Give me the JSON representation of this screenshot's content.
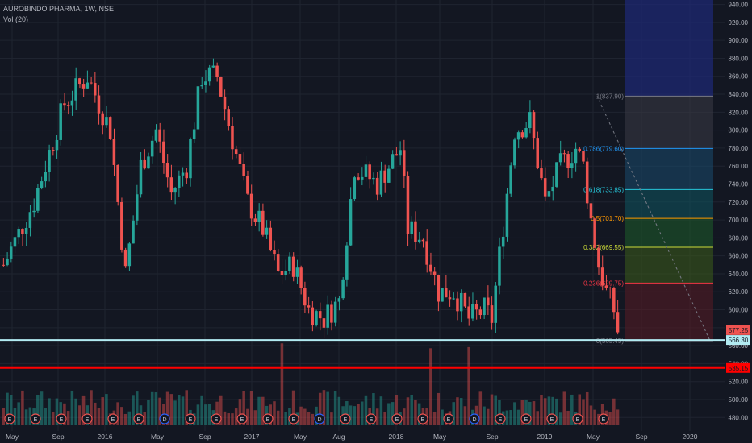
{
  "header": {
    "title": "AUROBINDO PHARMA, 1W, NSE",
    "indicator": "Vol (20)"
  },
  "colors": {
    "background": "#131722",
    "grid": "#1f2430",
    "up": "#26a69a",
    "down": "#ef5350",
    "axis_text": "#b2b5be"
  },
  "chart_data": {
    "type": "candlestick",
    "interval": "1W",
    "ylim": [
      465,
      945
    ],
    "y_ticks": [
      480,
      500,
      520,
      540,
      560,
      580,
      600,
      620,
      640,
      660,
      680,
      700,
      720,
      740,
      760,
      780,
      800,
      820,
      840,
      860,
      880,
      900,
      920,
      940
    ],
    "x_ticks": [
      "May",
      "Sep",
      "2016",
      "May",
      "Sep",
      "2017",
      "May",
      "Aug",
      "2018",
      "May",
      "Sep",
      "2019",
      "May",
      "Sep",
      "2020"
    ],
    "ohlc_anchors": [
      [
        0,
        650
      ],
      [
        8,
        720
      ],
      [
        16,
        830
      ],
      [
        22,
        860
      ],
      [
        28,
        800
      ],
      [
        32,
        640
      ],
      [
        36,
        760
      ],
      [
        40,
        800
      ],
      [
        44,
        730
      ],
      [
        48,
        760
      ],
      [
        52,
        860
      ],
      [
        56,
        860
      ],
      [
        60,
        790
      ],
      [
        64,
        720
      ],
      [
        68,
        690
      ],
      [
        72,
        640
      ],
      [
        76,
        650
      ],
      [
        80,
        600
      ],
      [
        84,
        590
      ],
      [
        88,
        610
      ],
      [
        92,
        760
      ],
      [
        98,
        740
      ],
      [
        104,
        780
      ],
      [
        106,
        690
      ],
      [
        110,
        680
      ],
      [
        114,
        620
      ],
      [
        118,
        620
      ],
      [
        122,
        590
      ],
      [
        126,
        600
      ],
      [
        128,
        590
      ],
      [
        130,
        660
      ],
      [
        134,
        800
      ],
      [
        138,
        810
      ],
      [
        142,
        720
      ],
      [
        146,
        760
      ],
      [
        150,
        780
      ],
      [
        152,
        760
      ],
      [
        154,
        700
      ],
      [
        156,
        650
      ],
      [
        158,
        620
      ],
      [
        160,
        600
      ],
      [
        161,
        577
      ]
    ],
    "fib_levels": [
      {
        "ratio": "1",
        "value": 837.9,
        "label": "1(837.90)",
        "color": "#787b86"
      },
      {
        "ratio": "0.786",
        "value": 779.6,
        "label": "0.786(779.60)",
        "color": "#2196f3"
      },
      {
        "ratio": "0.618",
        "value": 733.85,
        "label": "0.618(733.85)",
        "color": "#26c6da"
      },
      {
        "ratio": "0.5",
        "value": 701.7,
        "label": "0.5(701.70)",
        "color": "#ff9800"
      },
      {
        "ratio": "0.382",
        "value": 669.55,
        "label": "0.382(669.55)",
        "color": "#cddc39"
      },
      {
        "ratio": "0.236",
        "value": 629.75,
        "label": "0.236(629.75)",
        "color": "#f23645"
      },
      {
        "ratio": "0",
        "value": 565.45,
        "label": "0(565.45)",
        "color": "#787b86"
      }
    ],
    "horizontal_lines": [
      {
        "value": 566.3,
        "color": "#b2ebf2"
      },
      {
        "value": 535.15,
        "color": "#ff0000"
      }
    ],
    "price_labels": [
      {
        "value": 577.25,
        "text": "577.25",
        "color": "#ef5350"
      },
      {
        "value": 566.3,
        "text": "566.30",
        "color": "#b2ebf2"
      },
      {
        "value": 535.15,
        "text": "535.15",
        "color": "#ff0000"
      }
    ],
    "earnings_markers": [
      "E",
      "E",
      "E",
      "E",
      "E",
      "E",
      "D",
      "E",
      "E",
      "E",
      "E",
      "E",
      "D",
      "E",
      "E",
      "E",
      "E",
      "E",
      "D",
      "E",
      "E",
      "E",
      "E",
      "E"
    ],
    "grid": true
  }
}
